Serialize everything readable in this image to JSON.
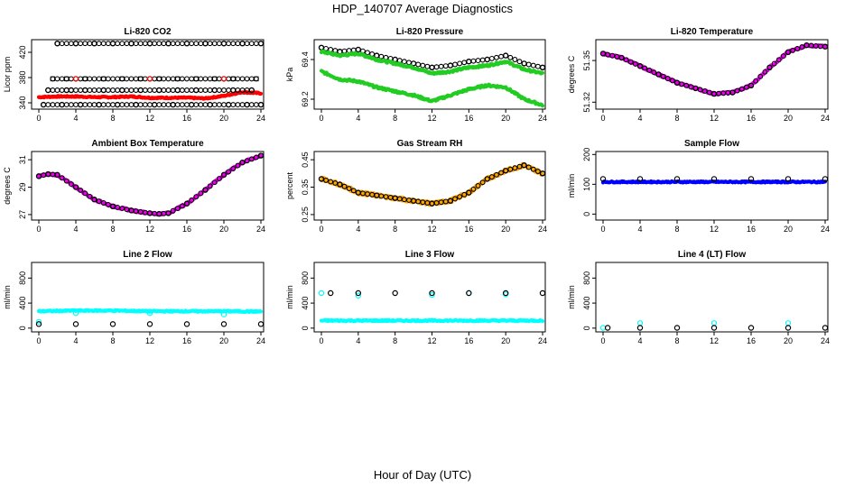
{
  "figure": {
    "title": "HDP_140707  Average Diagnostics",
    "xlabel": "Hour of Day (UTC)"
  },
  "colors": {
    "black": "#000000",
    "red": "#ff0000",
    "green": "#22cc22",
    "magenta": "#ee00ee",
    "orange": "#ffa500",
    "blue": "#0000ff",
    "cyan": "#00ffff"
  },
  "chart_data": [
    {
      "type": "scatter",
      "title": "Li-820 CO2",
      "ylabel": "Licor ppm",
      "xlim": [
        0,
        24
      ],
      "ylim": [
        330,
        440
      ],
      "xticks": [
        "0",
        "4",
        "8",
        "12",
        "16",
        "20",
        "24"
      ],
      "yticks": [
        "340",
        "380",
        "420"
      ],
      "series": [
        {
          "color": "red",
          "style": "dense-band",
          "x": [
            0,
            2,
            4,
            6,
            8,
            10,
            12,
            14,
            16,
            18,
            20,
            22,
            24
          ],
          "y": [
            349,
            350,
            350,
            349,
            349,
            350,
            348,
            348,
            348,
            347,
            351,
            357,
            355
          ]
        },
        {
          "color": "black",
          "style": "circle",
          "x": [
            2,
            4,
            6,
            8,
            10,
            12,
            14,
            16,
            18,
            20,
            22,
            24
          ],
          "y": [
            434,
            434,
            434,
            434,
            434,
            434,
            434,
            434,
            434,
            434,
            434,
            434
          ]
        },
        {
          "color": "black",
          "style": "circle",
          "x": [
            1,
            3,
            3.5,
            5,
            7,
            9,
            11,
            13,
            15,
            17,
            19,
            21,
            23
          ],
          "y": [
            360,
            360,
            360,
            360,
            360,
            360,
            360,
            360,
            360,
            360,
            360,
            360,
            360
          ]
        },
        {
          "color": "black",
          "style": "square",
          "x": [
            1.5,
            3,
            5,
            7,
            9,
            11,
            13,
            15,
            17,
            19,
            21,
            23.5
          ],
          "y": [
            378,
            378,
            378,
            378,
            378,
            378,
            378,
            378,
            378,
            378,
            378,
            378
          ]
        },
        {
          "color": "black",
          "style": "circle",
          "x": [
            0.5,
            2.5,
            4.5,
            6.5,
            8.5,
            10.5,
            12.5,
            14.5,
            16.5,
            18.5,
            20.5,
            22.5,
            24
          ],
          "y": [
            337,
            337,
            337,
            337,
            337,
            337,
            337,
            337,
            337,
            337,
            337,
            337,
            337
          ]
        },
        {
          "color": "red",
          "style": "circle",
          "x": [
            4,
            12,
            20
          ],
          "y": [
            378,
            378,
            378
          ]
        }
      ]
    },
    {
      "type": "scatter",
      "title": "Li-820 Pressure",
      "ylabel": "kPa",
      "xlim": [
        0,
        24
      ],
      "ylim": [
        69.15,
        69.5
      ],
      "xticks": [
        "0",
        "4",
        "8",
        "12",
        "16",
        "20",
        "24"
      ],
      "yticks": [
        "69.2",
        "69.4"
      ],
      "series": [
        {
          "color": "black",
          "style": "circle",
          "x": [
            0,
            2,
            4,
            6,
            8,
            10,
            12,
            14,
            16,
            18,
            20,
            22,
            24
          ],
          "y": [
            69.46,
            69.44,
            69.45,
            69.42,
            69.4,
            69.38,
            69.36,
            69.37,
            69.39,
            69.4,
            69.42,
            69.38,
            69.36
          ]
        },
        {
          "color": "green",
          "style": "band",
          "x": [
            0,
            2,
            4,
            6,
            8,
            10,
            12,
            14,
            16,
            18,
            20,
            22,
            24
          ],
          "y": [
            69.44,
            69.42,
            69.43,
            69.4,
            69.38,
            69.36,
            69.33,
            69.34,
            69.36,
            69.37,
            69.39,
            69.35,
            69.33
          ]
        },
        {
          "color": "green",
          "style": "band",
          "x": [
            0,
            2,
            4,
            6,
            8,
            10,
            12,
            14,
            16,
            18,
            20,
            22,
            24
          ],
          "y": [
            69.34,
            69.3,
            69.29,
            69.26,
            69.24,
            69.22,
            69.19,
            69.22,
            69.25,
            69.27,
            69.26,
            69.2,
            69.17
          ]
        }
      ]
    },
    {
      "type": "scatter",
      "title": "Li-820 Temperature",
      "ylabel": "degrees C",
      "xlim": [
        0,
        24
      ],
      "ylim": [
        51.315,
        51.365
      ],
      "xticks": [
        "0",
        "4",
        "8",
        "12",
        "16",
        "20",
        "24"
      ],
      "yticks": [
        "51.32",
        "51.35"
      ],
      "series": [
        {
          "color": "magenta",
          "style": "band",
          "x": [
            0,
            2,
            4,
            6,
            8,
            10,
            12,
            14,
            16,
            18,
            20,
            22,
            24
          ],
          "y": [
            51.355,
            51.352,
            51.346,
            51.34,
            51.334,
            51.33,
            51.326,
            51.327,
            51.332,
            51.345,
            51.356,
            51.361,
            51.36
          ]
        },
        {
          "color": "black",
          "style": "circle",
          "x": [
            0,
            2,
            4,
            6,
            8,
            10,
            12,
            14,
            16,
            18,
            20,
            22,
            24
          ],
          "y": [
            51.355,
            51.352,
            51.346,
            51.34,
            51.334,
            51.33,
            51.326,
            51.327,
            51.332,
            51.345,
            51.356,
            51.361,
            51.36
          ]
        }
      ]
    },
    {
      "type": "scatter",
      "title": "Ambient Box Temperature",
      "ylabel": "degrees C",
      "xlim": [
        0,
        24
      ],
      "ylim": [
        26.6,
        31.6
      ],
      "xticks": [
        "0",
        "4",
        "8",
        "12",
        "16",
        "20",
        "24"
      ],
      "yticks": [
        "27",
        "29",
        "31"
      ],
      "series": [
        {
          "color": "magenta",
          "style": "band",
          "x": [
            0,
            1,
            2,
            4,
            6,
            8,
            10,
            12,
            13,
            14,
            16,
            18,
            20,
            22,
            24
          ],
          "y": [
            29.8,
            29.95,
            29.9,
            29.0,
            28.1,
            27.6,
            27.3,
            27.1,
            27.05,
            27.1,
            27.8,
            28.8,
            29.9,
            30.8,
            31.3
          ]
        },
        {
          "color": "black",
          "style": "circle",
          "x": [
            0,
            1,
            2,
            4,
            6,
            8,
            10,
            12,
            13,
            14,
            16,
            18,
            20,
            22,
            24
          ],
          "y": [
            29.8,
            29.95,
            29.9,
            29.0,
            28.1,
            27.6,
            27.3,
            27.1,
            27.05,
            27.1,
            27.8,
            28.8,
            29.9,
            30.8,
            31.3
          ]
        }
      ]
    },
    {
      "type": "scatter",
      "title": "Gas Stream RH",
      "ylabel": "percent",
      "xlim": [
        0,
        24
      ],
      "ylim": [
        0.23,
        0.48
      ],
      "xticks": [
        "0",
        "4",
        "8",
        "12",
        "16",
        "20",
        "24"
      ],
      "yticks": [
        "0.25",
        "0.35",
        "0.45"
      ],
      "series": [
        {
          "color": "orange",
          "style": "noisy-band",
          "x": [
            0,
            2,
            4,
            6,
            8,
            10,
            12,
            14,
            16,
            18,
            20,
            22,
            24
          ],
          "y": [
            0.38,
            0.36,
            0.33,
            0.32,
            0.31,
            0.3,
            0.29,
            0.3,
            0.33,
            0.38,
            0.41,
            0.43,
            0.4
          ]
        },
        {
          "color": "black",
          "style": "circle",
          "x": [
            0,
            2,
            4,
            6,
            8,
            10,
            12,
            14,
            16,
            18,
            20,
            22,
            24
          ],
          "y": [
            0.38,
            0.36,
            0.33,
            0.32,
            0.31,
            0.3,
            0.29,
            0.3,
            0.33,
            0.38,
            0.41,
            0.43,
            0.4
          ]
        }
      ]
    },
    {
      "type": "scatter",
      "title": "Sample Flow",
      "ylabel": "ml/min",
      "xlim": [
        0,
        24
      ],
      "ylim": [
        -20,
        210
      ],
      "xticks": [
        "0",
        "4",
        "8",
        "12",
        "16",
        "20",
        "24"
      ],
      "yticks": [
        "0",
        "100",
        "200"
      ],
      "series": [
        {
          "color": "blue",
          "style": "dense-band",
          "x": [
            0,
            4,
            8,
            12,
            16,
            20,
            24
          ],
          "y": [
            108,
            108,
            108,
            108,
            108,
            108,
            108
          ]
        },
        {
          "color": "black",
          "style": "circle",
          "x": [
            0,
            4,
            8,
            12,
            16,
            20,
            24
          ],
          "y": [
            118,
            118,
            118,
            118,
            118,
            118,
            118
          ]
        }
      ]
    },
    {
      "type": "scatter",
      "title": "Line 2 Flow",
      "ylabel": "ml/min",
      "xlim": [
        0,
        24
      ],
      "ylim": [
        -60,
        1050
      ],
      "xticks": [
        "0",
        "4",
        "8",
        "12",
        "16",
        "20",
        "24"
      ],
      "yticks": [
        "0",
        "400",
        "800"
      ],
      "series": [
        {
          "color": "cyan",
          "style": "dense-band",
          "x": [
            0,
            4,
            8,
            12,
            16,
            20,
            24
          ],
          "y": [
            270,
            280,
            280,
            270,
            270,
            270,
            265
          ]
        },
        {
          "color": "cyan",
          "style": "circle",
          "x": [
            0,
            4,
            12,
            20
          ],
          "y": [
            100,
            240,
            240,
            220
          ]
        },
        {
          "color": "black",
          "style": "circle",
          "x": [
            0,
            4,
            8,
            12,
            16,
            20,
            24
          ],
          "y": [
            65,
            65,
            65,
            65,
            65,
            65,
            65
          ]
        }
      ]
    },
    {
      "type": "scatter",
      "title": "Line 3 Flow",
      "ylabel": "ml/min",
      "xlim": [
        0,
        24
      ],
      "ylim": [
        -60,
        1050
      ],
      "xticks": [
        "0",
        "4",
        "8",
        "12",
        "16",
        "20",
        "24"
      ],
      "yticks": [
        "0",
        "400",
        "800"
      ],
      "series": [
        {
          "color": "cyan",
          "style": "dense-band",
          "x": [
            0,
            4,
            8,
            12,
            16,
            20,
            24
          ],
          "y": [
            120,
            120,
            120,
            120,
            120,
            120,
            120
          ]
        },
        {
          "color": "cyan",
          "style": "circle",
          "x": [
            0,
            4,
            12,
            16,
            20
          ],
          "y": [
            560,
            520,
            530,
            560,
            540
          ]
        },
        {
          "color": "black",
          "style": "circle",
          "x": [
            1,
            4,
            8,
            12,
            16,
            20,
            24
          ],
          "y": [
            560,
            560,
            560,
            560,
            560,
            560,
            560
          ]
        }
      ]
    },
    {
      "type": "scatter",
      "title": "Line 4 (LT) Flow",
      "ylabel": "ml/min",
      "xlim": [
        0,
        24
      ],
      "ylim": [
        -60,
        1050
      ],
      "xticks": [
        "0",
        "4",
        "8",
        "12",
        "16",
        "20",
        "24"
      ],
      "yticks": [
        "0",
        "400",
        "800"
      ],
      "series": [
        {
          "color": "cyan",
          "style": "circle",
          "x": [
            0,
            4,
            12,
            20
          ],
          "y": [
            5,
            80,
            80,
            80
          ]
        },
        {
          "color": "black",
          "style": "circle",
          "x": [
            0.5,
            4,
            8,
            12,
            16,
            20,
            24
          ],
          "y": [
            5,
            5,
            5,
            5,
            5,
            5,
            5
          ]
        }
      ]
    }
  ]
}
